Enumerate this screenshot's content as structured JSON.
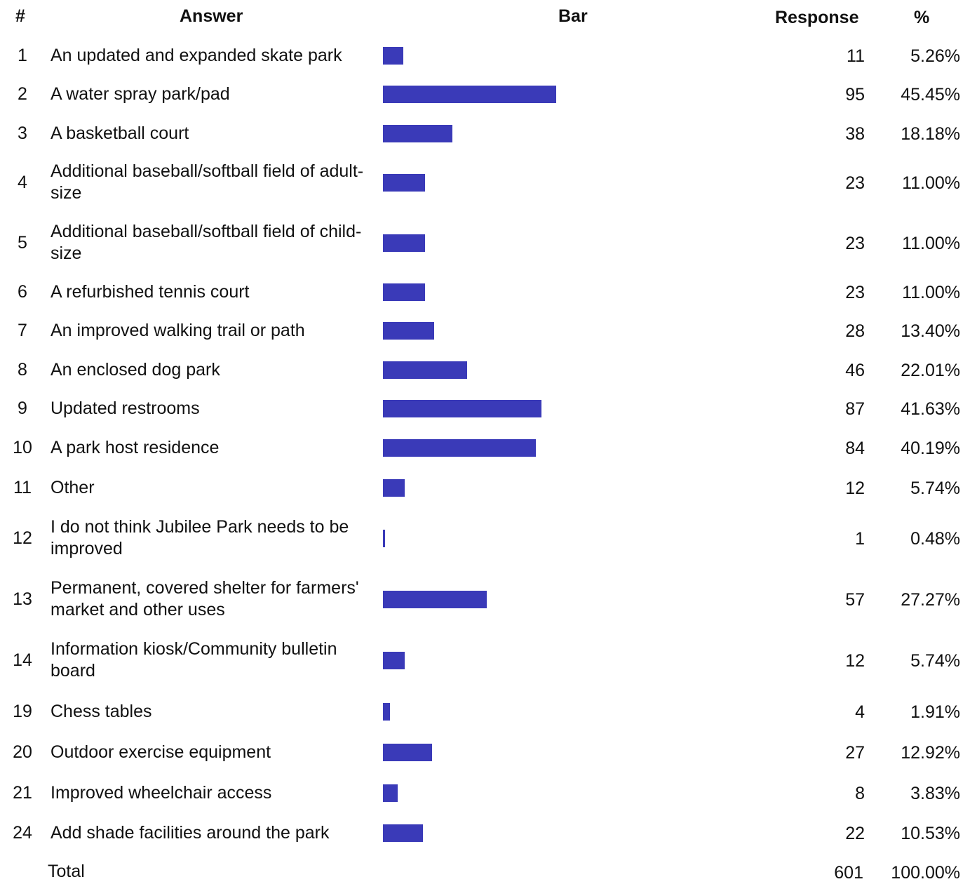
{
  "headers": {
    "num": "#",
    "answer": "Answer",
    "bar": "Bar",
    "response": "Response",
    "percent": "%"
  },
  "chart_data": {
    "type": "bar",
    "orientation": "horizontal",
    "rows": [
      {
        "num": "1",
        "answer": "An updated and expanded skate park",
        "response": 11,
        "response_text": "11",
        "percent_text": "5.26%"
      },
      {
        "num": "2",
        "answer": "A water spray park/pad",
        "response": 95,
        "response_text": "95",
        "percent_text": "45.45%"
      },
      {
        "num": "3",
        "answer": "A basketball court",
        "response": 38,
        "response_text": "38",
        "percent_text": "18.18%"
      },
      {
        "num": "4",
        "answer": "Additional baseball/softball field of adult-size",
        "response": 23,
        "response_text": "23",
        "percent_text": "11.00%"
      },
      {
        "num": "5",
        "answer": "Additional baseball/softball field of child-size",
        "response": 23,
        "response_text": "23",
        "percent_text": "11.00%"
      },
      {
        "num": "6",
        "answer": "A refurbished tennis court",
        "response": 23,
        "response_text": "23",
        "percent_text": "11.00%"
      },
      {
        "num": "7",
        "answer": "An improved walking trail or path",
        "response": 28,
        "response_text": "28",
        "percent_text": "13.40%"
      },
      {
        "num": "8",
        "answer": "An enclosed dog park",
        "response": 46,
        "response_text": "46",
        "percent_text": "22.01%"
      },
      {
        "num": "9",
        "answer": "Updated restrooms",
        "response": 87,
        "response_text": "87",
        "percent_text": "41.63%"
      },
      {
        "num": "10",
        "answer": "A park host residence",
        "response": 84,
        "response_text": "84",
        "percent_text": "40.19%"
      },
      {
        "num": "11",
        "answer": "Other",
        "response": 12,
        "response_text": "12",
        "percent_text": "5.74%"
      },
      {
        "num": "12",
        "answer": "I do not think Jubilee Park needs to be improved",
        "response": 1,
        "response_text": "1",
        "percent_text": "0.48%"
      },
      {
        "num": "13",
        "answer": "Permanent, covered shelter for farmers' market and other uses",
        "response": 57,
        "response_text": "57",
        "percent_text": "27.27%"
      },
      {
        "num": "14",
        "answer": "Information kiosk/Community bulletin board",
        "response": 12,
        "response_text": "12",
        "percent_text": "5.74%"
      },
      {
        "num": "19",
        "answer": "Chess tables",
        "response": 4,
        "response_text": "4",
        "percent_text": "1.91%"
      },
      {
        "num": "20",
        "answer": "Outdoor exercise equipment",
        "response": 27,
        "response_text": "27",
        "percent_text": "12.92%"
      },
      {
        "num": "21",
        "answer": "Improved wheelchair access",
        "response": 8,
        "response_text": "8",
        "percent_text": "3.83%"
      },
      {
        "num": "24",
        "answer": "Add shade facilities around the park",
        "response": 22,
        "response_text": "22",
        "percent_text": "10.53%"
      }
    ],
    "total": {
      "label": "Total",
      "response": "601",
      "percent": "100.00%"
    },
    "bar_color": "#3a3ab8"
  }
}
